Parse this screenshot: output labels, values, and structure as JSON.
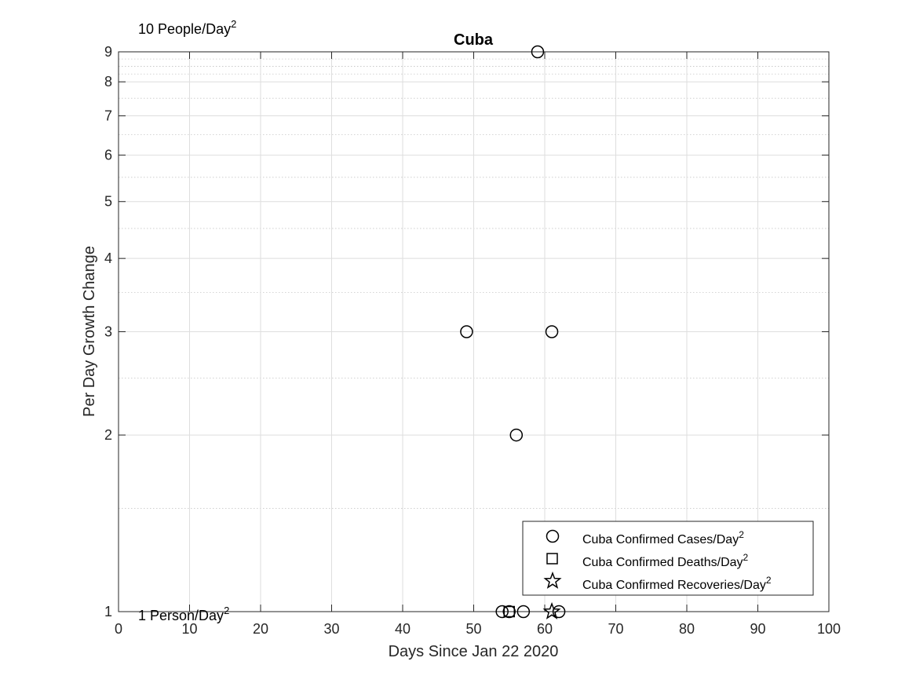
{
  "chart_data": {
    "type": "scatter",
    "title": "Cuba",
    "xlabel": "Days Since Jan 22 2020",
    "ylabel": "Per Day Growth Change",
    "xlim": [
      0,
      100
    ],
    "ylim": [
      1,
      9
    ],
    "yscale": "log",
    "grid": true,
    "minor_grid": true,
    "legend_position": "bottom-right",
    "xticks": [
      "0",
      "10",
      "20",
      "30",
      "40",
      "50",
      "60",
      "70",
      "80",
      "90",
      "100"
    ],
    "yticks": [
      "1",
      "2",
      "3",
      "4",
      "5",
      "6",
      "7",
      "8",
      "9"
    ],
    "annotations": {
      "top": {
        "base": "10 People/Day",
        "sup": "2"
      },
      "bottom": {
        "base": "1 Person/Day",
        "sup": "2"
      }
    },
    "series": [
      {
        "name": "Cuba Confirmed Cases/Day",
        "name_sup": "2",
        "marker": "circle",
        "color": "#000000",
        "x": [
          49,
          54,
          55,
          56,
          57,
          59,
          61,
          62
        ],
        "y": [
          3,
          1,
          1,
          2,
          1,
          9,
          3,
          1
        ]
      },
      {
        "name": "Cuba Confirmed Deaths/Day",
        "name_sup": "2",
        "marker": "square",
        "color": "#000000",
        "x": [
          55
        ],
        "y": [
          1
        ]
      },
      {
        "name": "Cuba Confirmed Recoveries/Day",
        "name_sup": "2",
        "marker": "star",
        "color": "#000000",
        "x": [
          61
        ],
        "y": [
          1
        ]
      }
    ]
  }
}
